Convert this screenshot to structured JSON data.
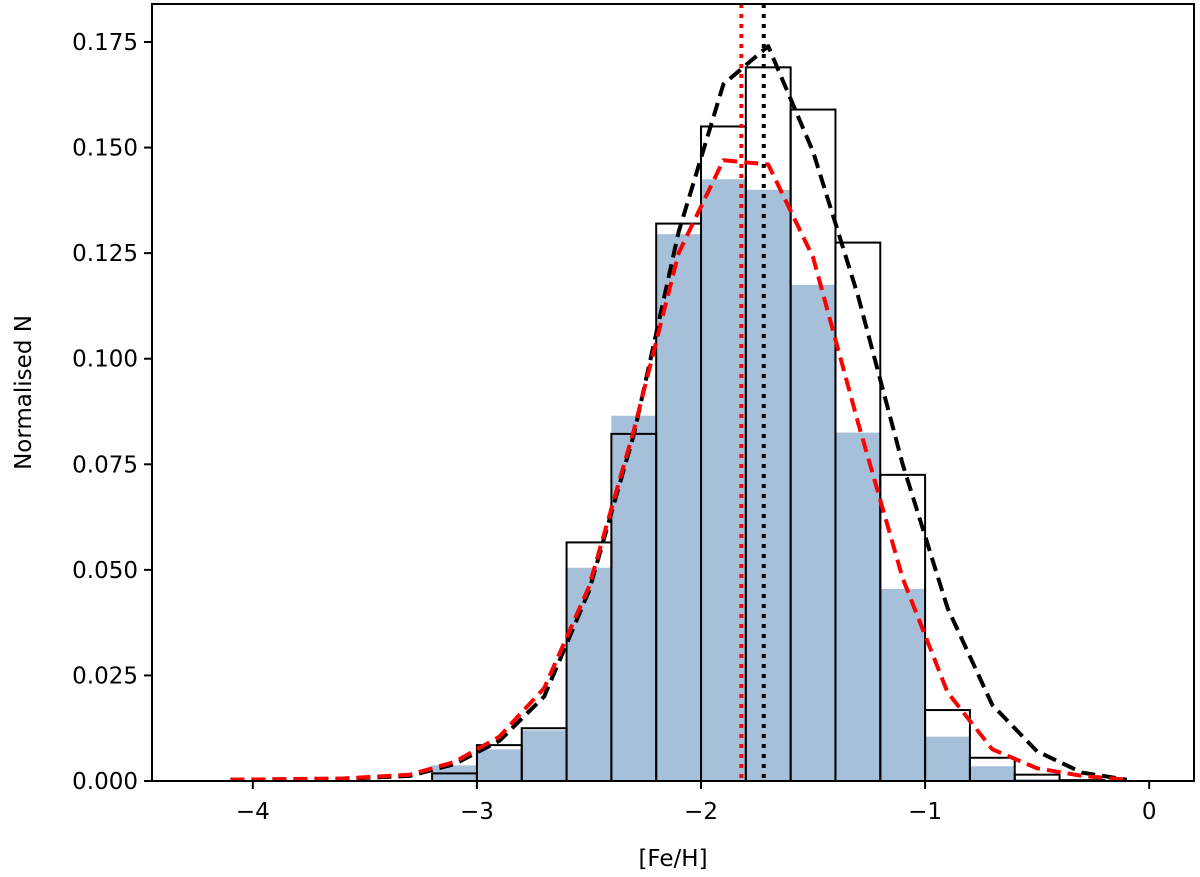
{
  "chart_data": {
    "type": "bar",
    "xlabel": "[Fe/H]",
    "ylabel": "Normalised N",
    "xlim": [
      -4.45,
      0.2
    ],
    "ylim": [
      0.0,
      0.184
    ],
    "x_ticks": [
      -4,
      -3,
      -2,
      -1,
      0
    ],
    "x_tick_labels": [
      "−4",
      "−3",
      "−2",
      "−1",
      "0"
    ],
    "y_ticks": [
      0.0,
      0.025,
      0.05,
      0.075,
      0.1,
      0.125,
      0.15,
      0.175
    ],
    "y_tick_labels": [
      "0.000",
      "0.025",
      "0.050",
      "0.075",
      "0.100",
      "0.125",
      "0.150",
      "0.175"
    ],
    "bin_edges": [
      -4.2,
      -4.0,
      -3.8,
      -3.6,
      -3.4,
      -3.2,
      -3.0,
      -2.8,
      -2.6,
      -2.4,
      -2.2,
      -2.0,
      -1.8,
      -1.6,
      -1.4,
      -1.2,
      -1.0,
      -0.8,
      -0.6,
      -0.4,
      -0.2
    ],
    "series": [
      {
        "style": "filled",
        "color": "#a6c0da",
        "values": [
          0.0,
          0.0,
          0.0,
          0.0,
          0.0,
          0.0037,
          0.0075,
          0.012,
          0.0505,
          0.0865,
          0.1295,
          0.1425,
          0.14,
          0.1175,
          0.0825,
          0.0455,
          0.0105,
          0.0035,
          0.0005,
          0.0
        ]
      },
      {
        "style": "outline",
        "color": "#000000",
        "values": [
          0.0,
          0.0,
          0.0,
          0.0,
          0.0,
          0.0018,
          0.0085,
          0.0125,
          0.0565,
          0.0822,
          0.132,
          0.155,
          0.169,
          0.159,
          0.1275,
          0.0725,
          0.0168,
          0.0055,
          0.0015,
          0.0002
        ]
      }
    ],
    "curves": [
      {
        "color": "#000000",
        "style": "dashed",
        "x": [
          -4.1,
          -3.6,
          -3.3,
          -3.1,
          -2.9,
          -2.7,
          -2.5,
          -2.3,
          -2.1,
          -1.9,
          -1.7,
          -1.5,
          -1.3,
          -1.1,
          -0.9,
          -0.7,
          -0.5,
          -0.3,
          -0.1
        ],
        "y": [
          0.0003,
          0.0005,
          0.0012,
          0.004,
          0.0095,
          0.02,
          0.045,
          0.082,
          0.13,
          0.165,
          0.174,
          0.149,
          0.115,
          0.075,
          0.041,
          0.018,
          0.007,
          0.002,
          0.0003
        ]
      },
      {
        "color": "#ff0000",
        "style": "dashed",
        "x": [
          -4.1,
          -3.6,
          -3.3,
          -3.1,
          -2.9,
          -2.7,
          -2.5,
          -2.3,
          -2.1,
          -1.9,
          -1.7,
          -1.5,
          -1.3,
          -1.1,
          -0.9,
          -0.7,
          -0.5,
          -0.3,
          -0.1
        ],
        "y": [
          0.0003,
          0.0006,
          0.0015,
          0.0045,
          0.0105,
          0.022,
          0.046,
          0.083,
          0.125,
          0.147,
          0.146,
          0.124,
          0.085,
          0.048,
          0.021,
          0.0075,
          0.003,
          0.0012,
          0.0003
        ]
      }
    ],
    "vlines": [
      {
        "x": -1.82,
        "color": "#ff0000",
        "style": "dotted"
      },
      {
        "x": -1.72,
        "color": "#000000",
        "style": "dotted"
      }
    ],
    "grid": false,
    "legend": "none"
  }
}
